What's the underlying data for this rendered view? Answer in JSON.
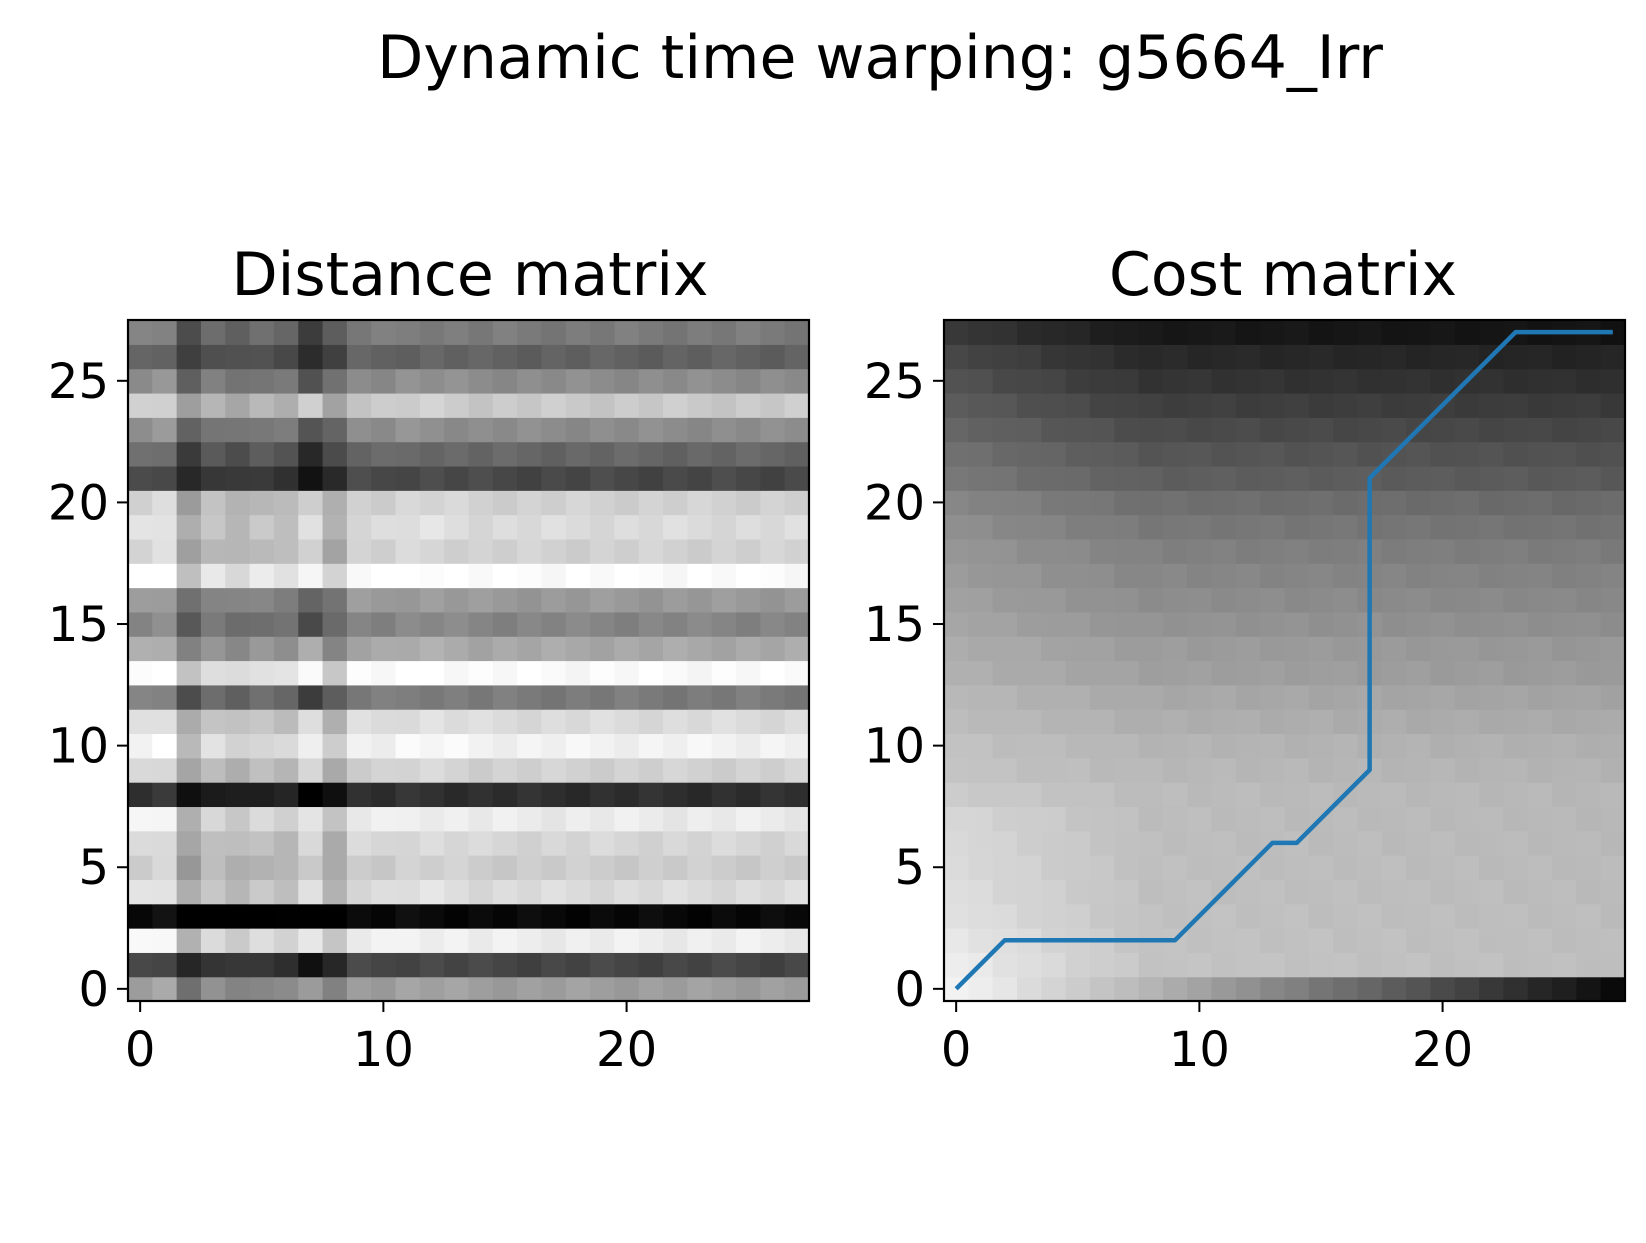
{
  "figure": {
    "title": "Dynamic time warping: g5664_Irr"
  },
  "chart_data": [
    {
      "type": "heatmap",
      "title": "Distance matrix",
      "colormap": "gray",
      "xlim": [
        -0.5,
        27.5
      ],
      "ylim": [
        -0.5,
        27.5
      ],
      "xticks": [
        0,
        10,
        20
      ],
      "yticks": [
        0,
        5,
        10,
        15,
        20,
        25
      ],
      "row_base": [
        0.62,
        0.27,
        0.93,
        0.03,
        0.86,
        0.8,
        0.84,
        0.92,
        0.18,
        0.82,
        0.95,
        0.86,
        0.48,
        0.98,
        0.66,
        0.52,
        0.6,
        0.99,
        0.82,
        0.86,
        0.82,
        0.28,
        0.4,
        0.55,
        0.79,
        0.55,
        0.38,
        0.48
      ],
      "col_offset": [
        0.02,
        0.04,
        -0.2,
        -0.08,
        -0.12,
        -0.08,
        -0.1,
        -0.3,
        -0.16,
        0.0,
        0.0,
        0.02,
        0.02,
        0.01,
        0.0,
        0.0,
        0.0,
        0.0,
        0.0,
        0.0,
        0.0,
        0.0,
        0.0,
        0.0,
        0.0,
        0.0,
        0.0,
        0.0
      ],
      "spike_col": 7
    },
    {
      "type": "heatmap",
      "title": "Cost matrix",
      "colormap": "gray",
      "xlim": [
        -0.5,
        27.5
      ],
      "ylim": [
        -0.5,
        27.5
      ],
      "xticks": [
        0,
        10,
        20
      ],
      "yticks": [
        0,
        5,
        10,
        15,
        20,
        25
      ],
      "bottom_row": [
        0.95,
        0.93,
        0.9,
        0.86,
        0.83,
        0.8,
        0.77,
        0.74,
        0.71,
        0.67,
        0.64,
        0.6,
        0.57,
        0.53,
        0.5,
        0.46,
        0.43,
        0.4,
        0.36,
        0.33,
        0.29,
        0.26,
        0.22,
        0.19,
        0.15,
        0.12,
        0.08,
        0.04
      ],
      "left_col": [
        0.95,
        0.93,
        0.91,
        0.88,
        0.87,
        0.86,
        0.85,
        0.84,
        0.8,
        0.77,
        0.76,
        0.74,
        0.72,
        0.69,
        0.68,
        0.65,
        0.63,
        0.61,
        0.59,
        0.56,
        0.53,
        0.47,
        0.44,
        0.4,
        0.36,
        0.32,
        0.28,
        0.22
      ],
      "plateau": 0.78,
      "path": {
        "color": "#1f77b4",
        "x": [
          0,
          2,
          9,
          13,
          14,
          17,
          17,
          23,
          27
        ],
        "y": [
          0,
          2,
          2,
          6,
          6,
          9,
          21,
          27,
          27
        ]
      }
    }
  ]
}
